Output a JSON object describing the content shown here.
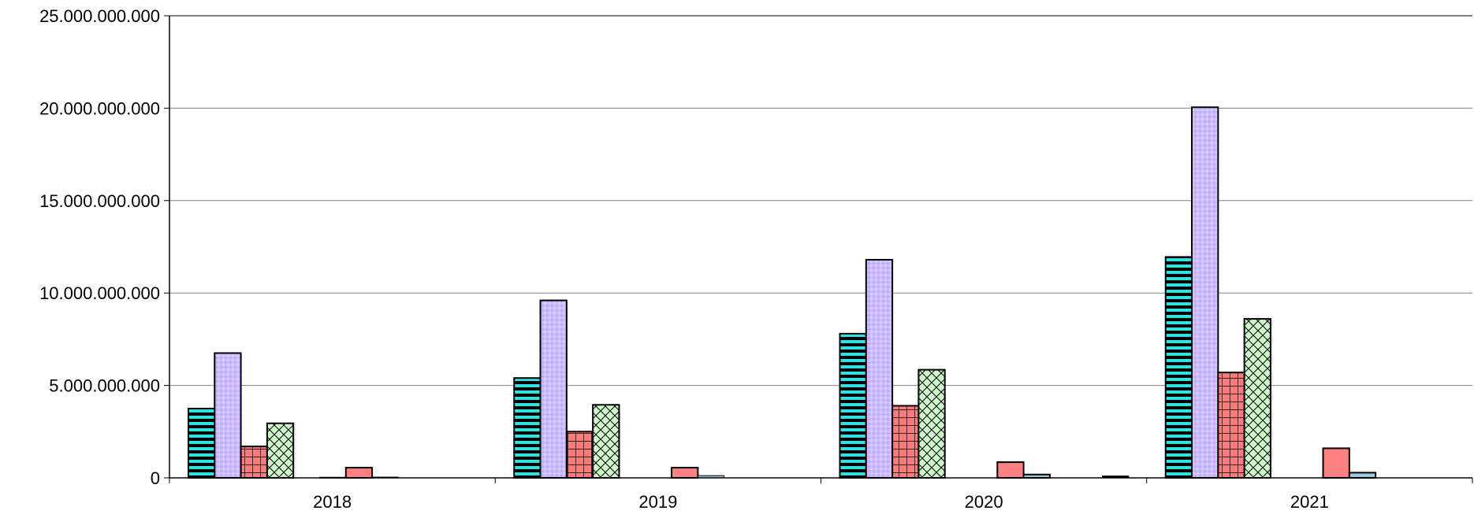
{
  "chart_data": {
    "type": "bar",
    "categories": [
      "2018",
      "2019",
      "2020",
      "2021"
    ],
    "ylim": [
      0,
      25000000000
    ],
    "yticks": [
      0,
      5000000000,
      10000000000,
      15000000000,
      20000000000,
      25000000000
    ],
    "ytick_labels": [
      "0",
      "5.000.000.000",
      "10.000.000.000",
      "15.000.000.000",
      "20.000.000.000",
      "25.000.000.000"
    ],
    "grid": true,
    "legend": "none",
    "series": [
      {
        "color": "#33e0e0",
        "pattern": "horizontal-stripes",
        "values": [
          3750000000,
          5400000000,
          7800000000,
          11950000000
        ]
      },
      {
        "color": "#ccbbff",
        "pattern": "dots",
        "values": [
          6750000000,
          9600000000,
          11800000000,
          20050000000
        ]
      },
      {
        "color": "#ff7b7b",
        "pattern": "grid",
        "values": [
          1700000000,
          2500000000,
          3900000000,
          5700000000
        ]
      },
      {
        "color": "#ccf5c8",
        "pattern": "crosshatch",
        "values": [
          2950000000,
          3950000000,
          5850000000,
          8600000000
        ]
      },
      {
        "color": "#ffffff",
        "pattern": "solid",
        "values": [
          0,
          0,
          0,
          0
        ]
      },
      {
        "color": "#000000",
        "pattern": "solid",
        "values": [
          30000000,
          0,
          0,
          0
        ]
      },
      {
        "color": "#ff8080",
        "pattern": "solid",
        "values": [
          550000000,
          550000000,
          850000000,
          1600000000
        ]
      },
      {
        "color": "#99ccdd",
        "pattern": "solid",
        "values": [
          40000000,
          120000000,
          180000000,
          280000000
        ]
      },
      {
        "color": "#ffffff",
        "pattern": "solid",
        "values": [
          0,
          0,
          0,
          0
        ]
      },
      {
        "color": "#ffffff",
        "pattern": "solid",
        "values": [
          0,
          0,
          0,
          0
        ]
      },
      {
        "color": "#000000",
        "pattern": "solid",
        "values": [
          0,
          0,
          100000000,
          0
        ]
      },
      {
        "color": "#ffffff",
        "pattern": "solid",
        "values": [
          0,
          0,
          0,
          0
        ]
      }
    ]
  }
}
